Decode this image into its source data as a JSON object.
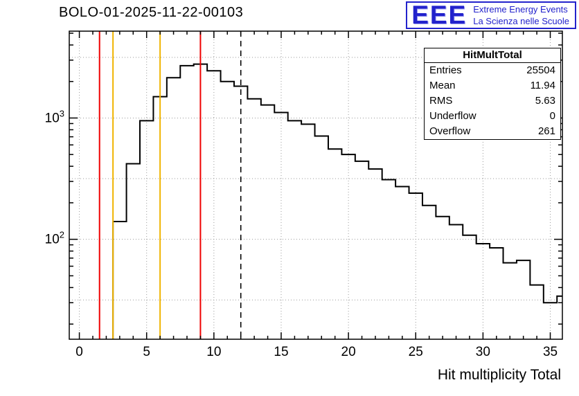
{
  "page": {
    "background": "#ffffff"
  },
  "header": {
    "title": "BOLO-01-2025-11-22-00103",
    "logo": {
      "acronym": "EEE",
      "line1": "Extreme Energy Events",
      "line2": "La Scienza nelle Scuole",
      "color": "#2222cc"
    }
  },
  "stats": {
    "title": "HitMultTotal",
    "rows": [
      {
        "label": "Entries",
        "value": "25504"
      },
      {
        "label": "Mean",
        "value": "11.94"
      },
      {
        "label": "RMS",
        "value": "5.63"
      },
      {
        "label": "Underflow",
        "value": "0"
      },
      {
        "label": "Overflow",
        "value": "261"
      }
    ]
  },
  "chart_data": {
    "type": "bar",
    "subtype": "step-histogram",
    "title": "BOLO-01-2025-11-22-00103",
    "xlabel": "Hit multiplicity Total",
    "ylabel": "",
    "y_scale": "log",
    "xlim": [
      -0.75,
      35.9
    ],
    "ylim": [
      15,
      5200
    ],
    "bin_width": 1,
    "bin_centers": [
      0,
      1,
      2,
      3,
      4,
      5,
      6,
      7,
      8,
      9,
      10,
      11,
      12,
      13,
      14,
      15,
      16,
      17,
      18,
      19,
      20,
      21,
      22,
      23,
      24,
      25,
      26,
      27,
      28,
      29,
      30,
      31,
      32,
      33,
      34,
      35,
      36
    ],
    "values": [
      0,
      0,
      0,
      140,
      420,
      950,
      1500,
      2150,
      2700,
      2780,
      2450,
      2000,
      1830,
      1440,
      1280,
      1110,
      950,
      890,
      710,
      555,
      500,
      440,
      380,
      310,
      272,
      240,
      190,
      154,
      132,
      108,
      92,
      85,
      64,
      67,
      42,
      30,
      34
    ],
    "x_ticks_major": [
      0,
      5,
      10,
      15,
      20,
      25,
      30,
      35
    ],
    "x_tick_labels": [
      "0",
      "5",
      "10",
      "15",
      "20",
      "25",
      "30",
      "35"
    ],
    "x_minor_step": 1,
    "y_ticks_major": [
      100,
      1000
    ],
    "y_tick_labels": [
      {
        "base": "10",
        "exp": "2",
        "value": 100
      },
      {
        "base": "10",
        "exp": "3",
        "value": 1000
      }
    ],
    "y_grid": [
      31.6,
      100,
      316.2,
      1000,
      3162
    ],
    "grid": true,
    "line_color": "#000000",
    "markers": [
      {
        "name": "cut-line-red-left",
        "x": 1.5,
        "color": "#f00000",
        "style": "solid"
      },
      {
        "name": "cut-line-orange-left",
        "x": 2.5,
        "color": "#f0b400",
        "style": "solid"
      },
      {
        "name": "cut-line-orange-right",
        "x": 6,
        "color": "#f0b400",
        "style": "solid"
      },
      {
        "name": "cut-line-red-right",
        "x": 9,
        "color": "#f00000",
        "style": "solid"
      },
      {
        "name": "mean-line-dashed",
        "x": 12,
        "color": "#000000",
        "style": "dashed"
      }
    ],
    "legend_position": "none"
  }
}
